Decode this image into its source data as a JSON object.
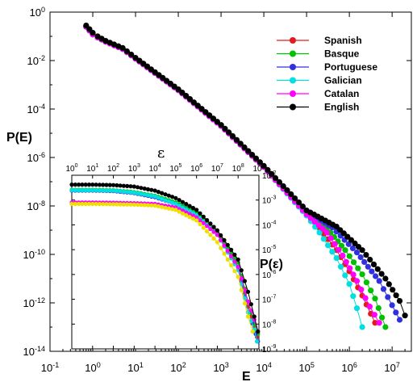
{
  "chart_data": [
    {
      "type": "line",
      "scale": "log-log",
      "xlabel": "E",
      "ylabel": "P(E)",
      "xlim": [
        0.1,
        30000000
      ],
      "ylim": [
        1e-14,
        1
      ],
      "x_ticks": [
        "10-1",
        "100",
        "101",
        "102",
        "103",
        "104",
        "105",
        "106",
        "107"
      ],
      "y_ticks": [
        "10-14",
        "10-12",
        "10-10",
        "10-8",
        "10-6",
        "10-4",
        "10-2",
        "100"
      ],
      "legend_position": "top-right",
      "series": [
        {
          "name": "Spanish",
          "color": "#e41a1c",
          "points": [
            [
              0.7,
              0.25
            ],
            [
              1,
              0.12
            ],
            [
              1.3,
              0.09
            ],
            [
              2,
              0.06
            ],
            [
              5,
              0.03
            ],
            [
              10,
              0.012
            ],
            [
              100,
              0.0006
            ],
            [
              1000,
              2e-05
            ],
            [
              10000,
              4e-07
            ],
            [
              100000,
              5e-09
            ],
            [
              200000,
              1.2e-09
            ],
            [
              500000,
              1.5e-10
            ],
            [
              1000000,
              2e-11
            ],
            [
              2000000,
              2e-12
            ],
            [
              4000000,
              1.5e-13
            ]
          ]
        },
        {
          "name": "Basque",
          "color": "#00c000",
          "points": [
            [
              0.7,
              0.25
            ],
            [
              1,
              0.12
            ],
            [
              1.3,
              0.09
            ],
            [
              2,
              0.06
            ],
            [
              5,
              0.03
            ],
            [
              10,
              0.012
            ],
            [
              100,
              0.0006
            ],
            [
              1000,
              2e-05
            ],
            [
              10000,
              4e-07
            ],
            [
              100000,
              5.5e-09
            ],
            [
              300000,
              1.2e-09
            ],
            [
              800000,
              1.5e-10
            ],
            [
              2000000,
              1.5e-11
            ],
            [
              4000000,
              1.5e-12
            ],
            [
              7000000,
              1e-13
            ]
          ]
        },
        {
          "name": "Portuguese",
          "color": "#3030e0",
          "points": [
            [
              0.7,
              0.25
            ],
            [
              1,
              0.12
            ],
            [
              1.3,
              0.09
            ],
            [
              2,
              0.06
            ],
            [
              5,
              0.03
            ],
            [
              10,
              0.012
            ],
            [
              100,
              0.0006
            ],
            [
              1000,
              2e-05
            ],
            [
              10000,
              4e-07
            ],
            [
              100000,
              6e-09
            ],
            [
              400000,
              1.3e-09
            ],
            [
              1500000,
              1.2e-10
            ],
            [
              5000000,
              8e-12
            ],
            [
              10000000,
              8e-13
            ],
            [
              15000000,
              2e-13
            ]
          ]
        },
        {
          "name": "Galician",
          "color": "#00e0e0",
          "points": [
            [
              0.7,
              0.25
            ],
            [
              1,
              0.12
            ],
            [
              1.3,
              0.09
            ],
            [
              2,
              0.06
            ],
            [
              5,
              0.03
            ],
            [
              10,
              0.012
            ],
            [
              100,
              0.0006
            ],
            [
              1000,
              2e-05
            ],
            [
              10000,
              4e-07
            ],
            [
              100000,
              4e-09
            ],
            [
              200000,
              8e-10
            ],
            [
              500000,
              7e-11
            ],
            [
              1000000,
              6e-12
            ],
            [
              1500000,
              6e-13
            ],
            [
              2000000,
              1e-13
            ]
          ]
        },
        {
          "name": "Catalan",
          "color": "#ff00ff",
          "points": [
            [
              0.7,
              0.25
            ],
            [
              1,
              0.12
            ],
            [
              1.3,
              0.09
            ],
            [
              2,
              0.06
            ],
            [
              5,
              0.03
            ],
            [
              10,
              0.012
            ],
            [
              100,
              0.0006
            ],
            [
              1000,
              2e-05
            ],
            [
              10000,
              4e-07
            ],
            [
              100000,
              4.5e-09
            ],
            [
              300000,
              8e-10
            ],
            [
              700000,
              9e-11
            ],
            [
              1500000,
              8e-12
            ],
            [
              3000000,
              7e-13
            ],
            [
              5000000,
              1.5e-13
            ]
          ]
        },
        {
          "name": "English",
          "color": "#000000",
          "points": [
            [
              0.7,
              0.28
            ],
            [
              1,
              0.14
            ],
            [
              1.3,
              0.1
            ],
            [
              2,
              0.065
            ],
            [
              5,
              0.033
            ],
            [
              10,
              0.013
            ],
            [
              100,
              0.00065
            ],
            [
              1000,
              2.2e-05
            ],
            [
              10000,
              4.5e-07
            ],
            [
              100000,
              6.5e-09
            ],
            [
              500000,
              1.4e-09
            ],
            [
              2000000,
              1.5e-10
            ],
            [
              7000000,
              1e-11
            ],
            [
              15000000,
              1.2e-12
            ],
            [
              20000000,
              3e-13
            ]
          ]
        }
      ]
    },
    {
      "type": "line",
      "scale": "log-log",
      "inset": true,
      "xlabel": "ε",
      "ylabel": "P(ε)",
      "xlim": [
        1,
        1000000000
      ],
      "ylim": [
        1e-09,
        0.01
      ],
      "x_ticks": [
        "100",
        "101",
        "102",
        "103",
        "104",
        "105",
        "106",
        "107",
        "108",
        "109"
      ],
      "y_ticks": [
        "10-2",
        "10-3",
        "10-4",
        "10-5",
        "10-6",
        "10-7",
        "10-8",
        "10-9"
      ],
      "series": [
        {
          "name": "Spanish",
          "color": "#e41a1c",
          "points": [
            [
              1,
              0.0025
            ],
            [
              10,
              0.0025
            ],
            [
              100,
              0.0024
            ],
            [
              1000,
              0.002
            ],
            [
              10000,
              0.0014
            ],
            [
              100000,
              0.0007
            ],
            [
              1000000,
              0.00025
            ],
            [
              10000000,
              4e-05
            ],
            [
              100000000,
              2e-06
            ],
            [
              300000000,
              5e-08
            ],
            [
              600000000,
              8e-09
            ],
            [
              800000000,
              3e-09
            ]
          ]
        },
        {
          "name": "Basque",
          "color": "#00c000",
          "points": [
            [
              1,
              0.0026
            ],
            [
              10,
              0.0026
            ],
            [
              100,
              0.0025
            ],
            [
              1000,
              0.0021
            ],
            [
              10000,
              0.0015
            ],
            [
              100000,
              0.0008
            ],
            [
              1000000,
              0.0003
            ],
            [
              10000000,
              5e-05
            ],
            [
              100000000,
              3e-06
            ],
            [
              300000000,
              8e-08
            ],
            [
              600000000,
              1e-08
            ],
            [
              900000000,
              4e-09
            ]
          ]
        },
        {
          "name": "Portuguese",
          "color": "#3030e0",
          "points": [
            [
              1,
              0.0024
            ],
            [
              10,
              0.0024
            ],
            [
              100,
              0.0023
            ],
            [
              1000,
              0.0019
            ],
            [
              10000,
              0.0013
            ],
            [
              100000,
              0.0007
            ],
            [
              1000000,
              0.00025
            ],
            [
              10000000,
              4e-05
            ],
            [
              100000000,
              2e-06
            ],
            [
              300000000,
              3e-08
            ],
            [
              700000000,
              4e-09
            ],
            [
              900000000,
              2e-09
            ]
          ]
        },
        {
          "name": "Galician",
          "color": "#00e0e0",
          "points": [
            [
              1,
              0.0025
            ],
            [
              10,
              0.0025
            ],
            [
              100,
              0.0024
            ],
            [
              1000,
              0.002
            ],
            [
              10000,
              0.0014
            ],
            [
              100000,
              0.0007
            ],
            [
              1000000,
              0.00025
            ],
            [
              10000000,
              4e-05
            ],
            [
              100000000,
              1.5e-06
            ],
            [
              300000000,
              3e-08
            ],
            [
              600000000,
              6e-09
            ],
            [
              800000000,
              2e-09
            ]
          ]
        },
        {
          "name": "Catalan",
          "color": "#ff00ff",
          "points": [
            [
              1,
              0.0008
            ],
            [
              10,
              0.0008
            ],
            [
              100,
              0.00078
            ],
            [
              1000,
              0.00075
            ],
            [
              10000,
              0.0007
            ],
            [
              100000,
              0.0005
            ],
            [
              1000000,
              0.0002
            ],
            [
              10000000,
              4e-05
            ],
            [
              100000000,
              2e-06
            ],
            [
              300000000,
              8e-08
            ],
            [
              600000000,
              1.5e-08
            ],
            [
              900000000,
              5e-09
            ]
          ]
        },
        {
          "name": "English",
          "color": "#000000",
          "points": [
            [
              1,
              0.0042
            ],
            [
              10,
              0.0042
            ],
            [
              100,
              0.004
            ],
            [
              1000,
              0.0035
            ],
            [
              10000,
              0.0024
            ],
            [
              100000,
              0.0012
            ],
            [
              1000000,
              0.0004
            ],
            [
              10000000,
              6e-05
            ],
            [
              100000000,
              4e-06
            ],
            [
              300000000,
              2e-07
            ],
            [
              600000000,
              2e-08
            ],
            [
              900000000,
              5e-09
            ]
          ]
        },
        {
          "name": "",
          "color": "#f0e000",
          "points": [
            [
              1,
              0.0007
            ],
            [
              10,
              0.0007
            ],
            [
              100,
              0.00068
            ],
            [
              1000,
              0.00066
            ],
            [
              10000,
              0.0006
            ],
            [
              100000,
              0.0004
            ],
            [
              1000000,
              0.00015
            ],
            [
              10000000,
              2e-05
            ],
            [
              100000000,
              8e-07
            ],
            [
              300000000,
              2e-08
            ],
            [
              500000000,
              5e-09
            ]
          ]
        }
      ]
    }
  ]
}
